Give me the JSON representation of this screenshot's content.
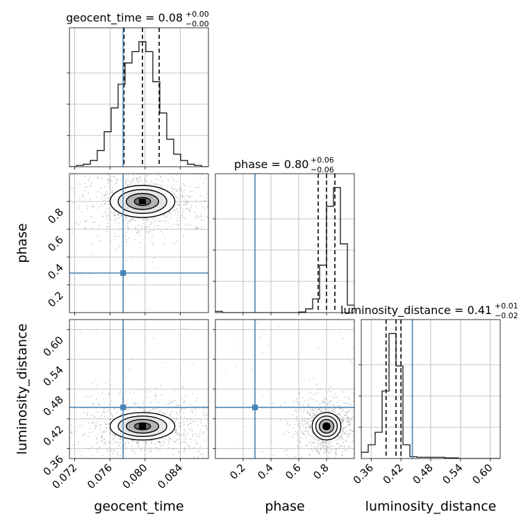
{
  "chart_data": {
    "type": "corner",
    "parameters": [
      "geocent_time",
      "phase",
      "luminosity_distance"
    ],
    "colors": {
      "truth": "#4682b4",
      "contour": "#000000",
      "hist": "#000000",
      "grid": "#b0b0b0",
      "points": "#7f7f7f"
    },
    "titles": [
      {
        "param": "geocent_time",
        "main": "geocent_time = 0.08",
        "sup": "+0.00",
        "sub": "−0.00"
      },
      {
        "param": "phase",
        "main": "phase = 0.80",
        "sup": "+0.06",
        "sub": "−0.06"
      },
      {
        "param": "luminosity_distance",
        "main": "luminosity_distance = 0.41",
        "sup": "+0.01",
        "sub": "−0.02"
      }
    ],
    "truths": {
      "geocent_time": 0.0775,
      "phase": 0.285,
      "luminosity_distance": 0.443
    },
    "axes": {
      "geocent_time": {
        "range": [
          0.0714,
          0.0872
        ],
        "ticks": [
          0.072,
          0.076,
          0.08,
          0.084
        ],
        "tick_labels": [
          "0.072",
          "0.076",
          "0.080",
          "0.084"
        ]
      },
      "phase": {
        "range": [
          0.0,
          1.0
        ],
        "ticks": [
          0.2,
          0.4,
          0.6,
          0.8
        ],
        "tick_labels": [
          "0.2",
          "0.4",
          "0.6",
          "0.8"
        ]
      },
      "luminosity_distance": {
        "range": [
          0.34,
          0.62
        ],
        "ticks": [
          0.36,
          0.42,
          0.48,
          0.54,
          0.6
        ],
        "tick_labels": [
          "0.36",
          "0.42",
          "0.48",
          "0.54",
          "0.60"
        ]
      }
    },
    "axis_labels": {
      "geocent_time": "geocent_time",
      "phase": "phase",
      "luminosity_distance": "luminosity_distance"
    },
    "quantiles": {
      "geocent_time": [
        0.0776,
        0.0797,
        0.0816
      ],
      "phase": [
        0.74,
        0.8,
        0.86
      ],
      "luminosity_distance": [
        0.39,
        0.41,
        0.42
      ]
    },
    "histograms": {
      "geocent_time": {
        "edges": [
          0.0714,
          0.07219,
          0.07298,
          0.07377,
          0.07456,
          0.07535,
          0.07614,
          0.07693,
          0.07772,
          0.07851,
          0.0793,
          0.08009,
          0.08088,
          0.08167,
          0.08246,
          0.08325,
          0.08404,
          0.08483,
          0.08562,
          0.08641,
          0.0872
        ],
        "counts": [
          0,
          0.01,
          0.02,
          0.05,
          0.13,
          0.28,
          0.47,
          0.66,
          0.83,
          0.92,
          1.0,
          0.92,
          0.68,
          0.43,
          0.22,
          0.1,
          0.05,
          0.02,
          0.01,
          0
        ]
      },
      "phase": {
        "edges": [
          0.0,
          0.05,
          0.1,
          0.15,
          0.2,
          0.25,
          0.3,
          0.35,
          0.4,
          0.45,
          0.5,
          0.55,
          0.6,
          0.65,
          0.7,
          0.75,
          0.8,
          0.85,
          0.9,
          0.95,
          1.0
        ],
        "counts": [
          0.01,
          0,
          0,
          0,
          0,
          0,
          0,
          0,
          0,
          0,
          0,
          0,
          0.005,
          0.03,
          0.11,
          0.38,
          0.85,
          1.0,
          0.55,
          0.06
        ]
      },
      "luminosity_distance": {
        "edges": [
          0.34,
          0.354,
          0.368,
          0.382,
          0.396,
          0.41,
          0.424,
          0.438,
          0.452,
          0.466,
          0.48,
          0.494,
          0.508,
          0.522,
          0.536,
          0.55,
          0.564,
          0.578,
          0.592,
          0.606,
          0.62
        ],
        "counts": [
          0.05,
          0.11,
          0.21,
          0.54,
          1.0,
          0.74,
          0.11,
          0.015,
          0.01,
          0.01,
          0.01,
          0.01,
          0.005,
          0.005,
          0,
          0,
          0,
          0,
          0,
          0
        ]
      }
    },
    "posterior_2d": {
      "phase_vs_geocent_time": {
        "x_mean": 0.0797,
        "x_sd": 0.0016,
        "y_mean": 0.8,
        "y_sd": 0.05
      },
      "luminosity_distance_vs_geocent_time": {
        "x_mean": 0.0797,
        "x_sd": 0.0016,
        "y_mean": 0.405,
        "y_sd": 0.012
      },
      "luminosity_distance_vs_phase": {
        "x_mean": 0.8,
        "x_sd": 0.045,
        "y_mean": 0.405,
        "y_sd": 0.012
      }
    },
    "contour_sigma_levels": [
      0.5,
      1.0,
      1.5,
      2.0
    ]
  }
}
